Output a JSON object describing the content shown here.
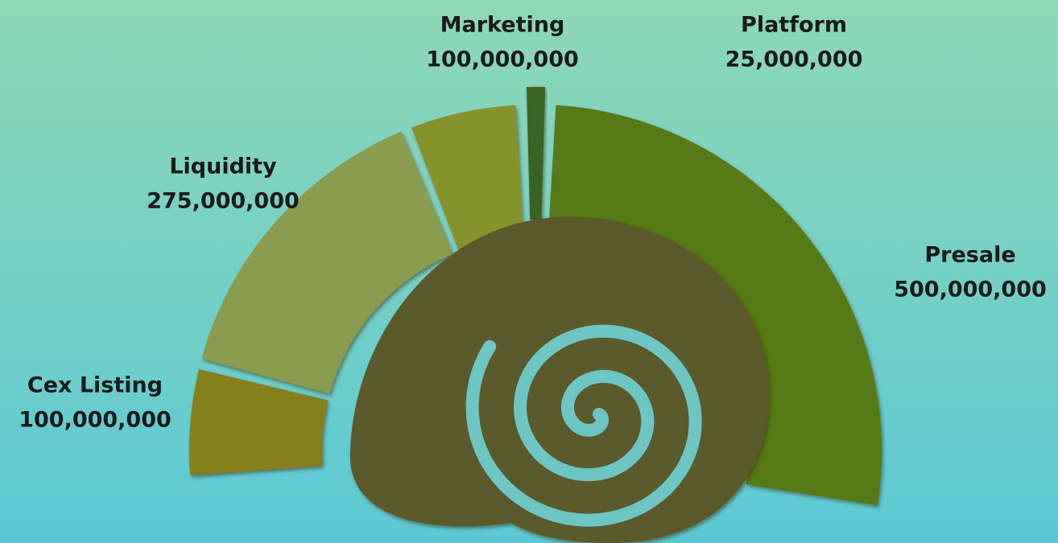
{
  "chart_data": {
    "type": "donut",
    "categories": [
      "Cex Listing",
      "Liquidity",
      "Marketing",
      "Platform",
      "Presale"
    ],
    "values": [
      100000000,
      275000000,
      100000000,
      25000000,
      500000000
    ],
    "value_labels": [
      "100,000,000",
      "275,000,000",
      "100,000,000",
      "25,000,000",
      "500,000,000"
    ],
    "colors": [
      "#857f1e",
      "#8a9c4e",
      "#86922c",
      "#3a6324",
      "#567a18"
    ]
  }
}
